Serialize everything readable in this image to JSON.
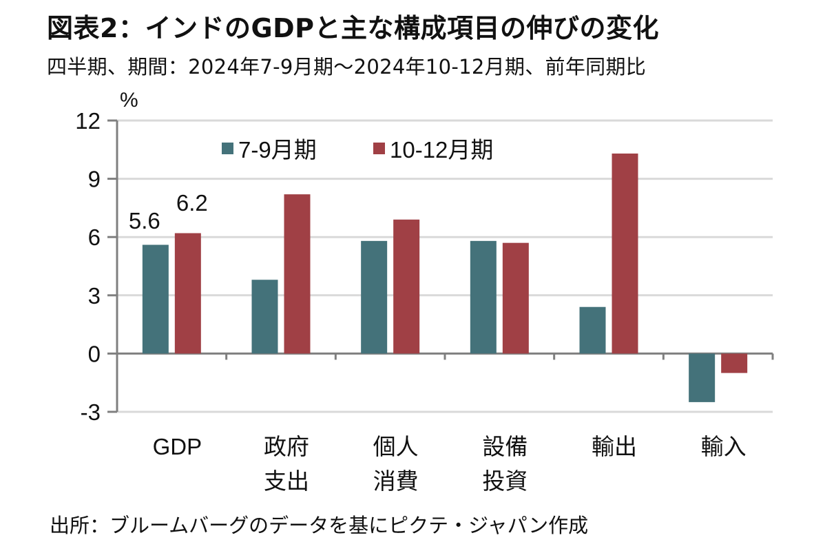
{
  "header": {
    "title": "図表2：インドのGDPと主な構成項目の伸びの変化",
    "subtitle": "四半期、期間：2024年7-9月期～2024年10-12月期、前年同期比"
  },
  "footer": {
    "source": "出所：ブルームバーグのデータを基にピクテ・ジャパン作成"
  },
  "chart_data": {
    "type": "bar",
    "title": "インドのGDPと主な構成項目の伸びの変化",
    "ylabel": "%",
    "xlabel": "",
    "ylim": [
      -3,
      12
    ],
    "yticks": [
      12,
      9,
      6,
      3,
      0,
      -3
    ],
    "grid": true,
    "legend_position": "top-left",
    "categories": [
      [
        "GDP"
      ],
      [
        "政府",
        "支出"
      ],
      [
        "個人",
        "消費"
      ],
      [
        "設備",
        "投資"
      ],
      [
        "輸出"
      ],
      [
        "輸入"
      ]
    ],
    "series": [
      {
        "name": "7-9月期",
        "color": "#44727a",
        "values": [
          5.6,
          3.8,
          5.8,
          5.8,
          2.4,
          -2.5
        ]
      },
      {
        "name": "10-12月期",
        "color": "#a04045",
        "values": [
          6.2,
          8.2,
          6.9,
          5.7,
          10.3,
          -1.0
        ]
      }
    ],
    "data_labels": [
      {
        "series": 0,
        "category": 0,
        "text": "5.6"
      },
      {
        "series": 1,
        "category": 0,
        "text": "6.2"
      }
    ]
  }
}
